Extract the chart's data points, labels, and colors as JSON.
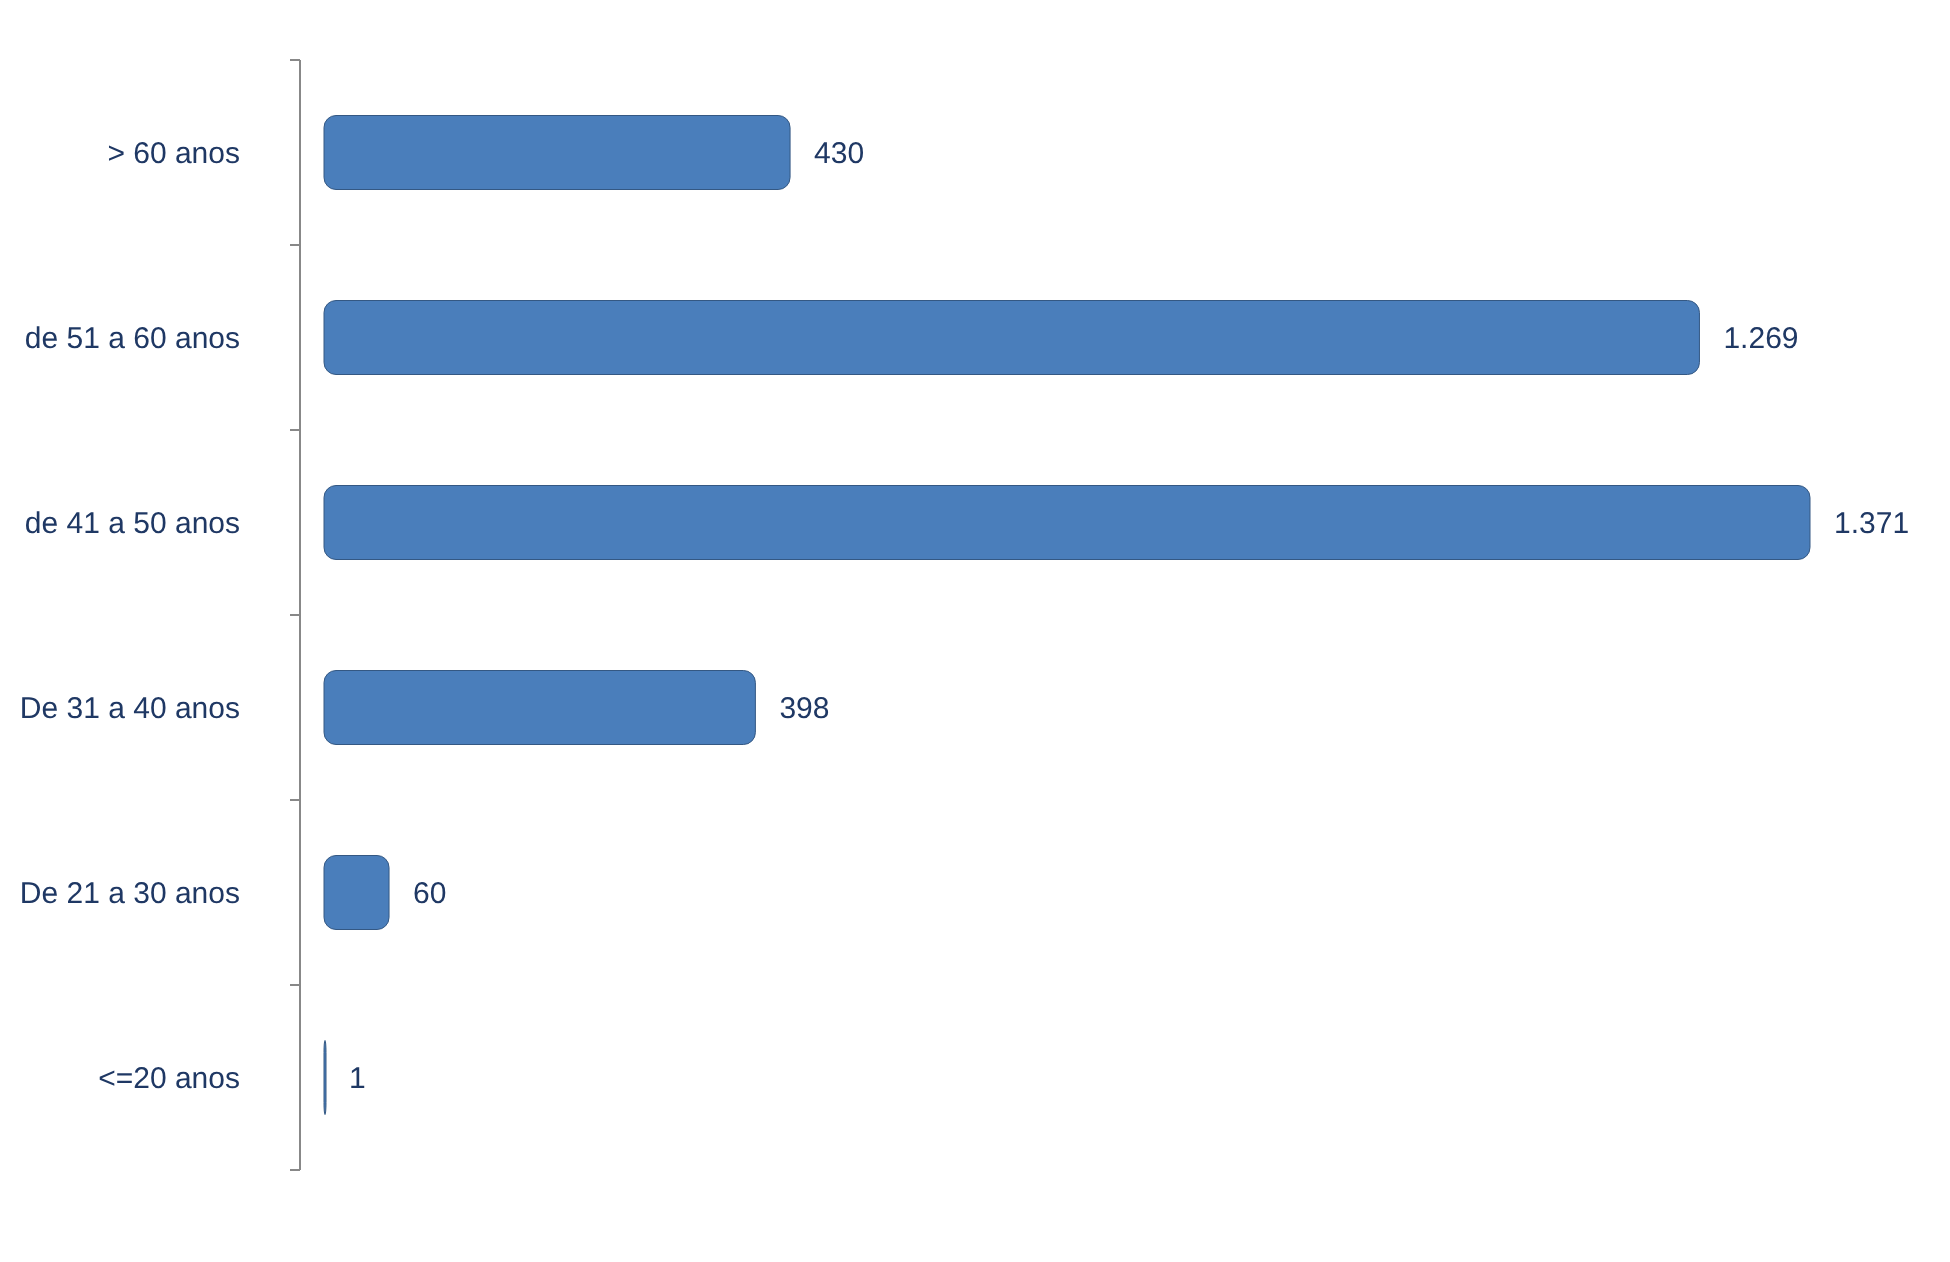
{
  "chart_data": {
    "type": "bar",
    "orientation": "horizontal",
    "categories": [
      "> 60 anos",
      "de 51 a 60 anos",
      "de 41 a 50 anos",
      "De 31 a 40 anos",
      "De 21 a 30 anos",
      "<=20 anos"
    ],
    "values": [
      430,
      1269,
      1371,
      398,
      60,
      1
    ],
    "value_labels": [
      "430",
      "1.269",
      "1.371",
      "398",
      "60",
      "1"
    ],
    "color": "#4a7ebb"
  }
}
